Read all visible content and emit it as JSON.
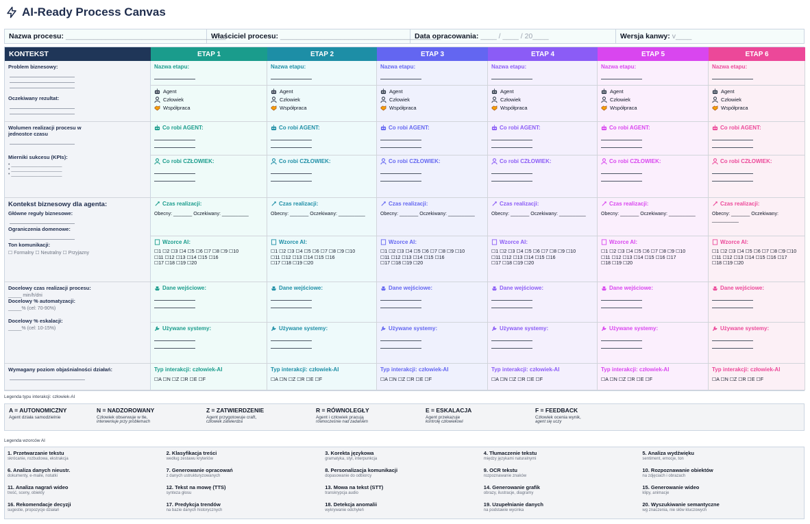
{
  "title": "AI-Ready Process Canvas",
  "meta": {
    "name_label": "Nazwa procesu:",
    "name_val": "________________________________________",
    "owner_label": "Właściciel procesu:",
    "owner_val": "________________________________________",
    "date_label": "Data opracowania:",
    "date_val": "____ / ____ / 20____",
    "ver_label": "Wersja kanwy:",
    "ver_val": "v____"
  },
  "context": {
    "header": "KONTEKST",
    "problem": "Problem biznesowy:",
    "result": "Oczekiwany rezultat:",
    "volume": "Wolumen realizacji procesu w jednostce czasu",
    "kpis": "Mierniki sukcesu (KPIs):",
    "business_ctx": "Kontekst biznesowy dla agenta:",
    "rules": "Główne reguły biznesowe:",
    "domain": "Ograniczenia domenowe:",
    "tone": "Ton komunikacji:",
    "tone_opts": "☐ Formalny ☐ Neutralny ☐ Przyjazny",
    "target_time": "Docelowy czas realizacji procesu:",
    "target_time_unit": "_____ min/h/dni",
    "auto": "Docelowy % automatyzacji:",
    "auto_goal": "_____% (cel: 70-90%)",
    "esc": "Docelowy % eskalacji:",
    "esc_goal": "_____% (cel: 10-15%)",
    "explain": "Wymagany poziom objaśnialności działań:",
    "kpi_bullets": [
      "• ___________________",
      "• ___________________",
      "• ___________________"
    ]
  },
  "stage_labels": {
    "name": "Nazwa etapu:",
    "agent": "Agent",
    "human": "Człowiek",
    "collab": "Współpraca",
    "does_agent": "Co robi AGENT:",
    "does_human": "Co robi CZŁOWIEK:",
    "time": "Czas realizacji:",
    "current": "Obecny: _______",
    "expected": "Oczekiwany: __________",
    "patterns": "Wzorce AI:",
    "inputs": "Dane wejściowe:",
    "systems": "Używane systemy:",
    "interaction": "Typ interakcji: człowiek-AI",
    "interaction_opts": "☐A ☐N ☐Z ☐R ☐E ☐F"
  },
  "stages": [
    {
      "header": "ETAP 1",
      "color": "#1a9c8c",
      "checks": "☐1 ☐2 ☐3 ☐4 ☐5 ☐6 ☐7 ☐8 ☐9 ☐10\n☐11 ☐12 ☐13 ☐14 ☐15 ☐16\n☐17 ☐18 ☐19 ☐20"
    },
    {
      "header": "ETAP 2",
      "color": "#1d8ea6",
      "checks": "☐1 ☐2 ☐3 ☐4 ☐5 ☐6 ☐7 ☐8 ☐9 ☐10\n☐11 ☐12 ☐13 ☐14 ☐15 ☐16\n☐17 ☐18 ☐19 ☐20"
    },
    {
      "header": "ETAP 3",
      "color": "#6366f1",
      "checks": "☐1 ☐2 ☐3 ☐4 ☐5 ☐6 ☐7 ☐8 ☐9 ☐10\n☐11 ☐12 ☐13 ☐14 ☐15 ☐16\n☐17 ☐18 ☐19 ☐20"
    },
    {
      "header": "ETAP 4",
      "color": "#8b5cf6",
      "checks": "☐1 ☐2 ☐3 ☐4 ☐5 ☐6 ☐7 ☐8 ☐9 ☐10\n☐11 ☐12 ☐13 ☐14 ☐15 ☐16\n☐17 ☐18 ☐19 ☐20"
    },
    {
      "header": "ETAP 5",
      "color": "#d946ef",
      "checks": "☐1 ☐2 ☐3 ☐4 ☐5 ☐6 ☐7 ☐8 ☐9 ☐10\n☐11 ☐12 ☐13 ☐14 ☐15 ☐16 ☐17\n☐18 ☐19 ☐20"
    },
    {
      "header": "ETAP 6",
      "color": "#ec4899",
      "checks": "☐1 ☐2 ☐3 ☐4 ☐5 ☐6 ☐7 ☐8 ☐9 ☐10\n☐11 ☐12 ☐13 ☐14 ☐15 ☐16 ☐17\n☐18 ☐19 ☐20"
    }
  ],
  "legend1": {
    "title": "Legenda typu interakcji: człowiek-AI",
    "items": [
      {
        "h": "A = AUTONOMICZNY",
        "d": "Agent działa samodzielnie",
        "i": ""
      },
      {
        "h": "N = NADZOROWANY",
        "d": "Człowiek obserwuje w tle,",
        "i": "interweniuje przy problemach"
      },
      {
        "h": "Z = ZATWIERDZENIE",
        "d": "Agent przygotowuje craft,",
        "i": "człowiek zatwierdza"
      },
      {
        "h": "R = RÓWNOLEGŁY",
        "d": "Agent i człowiek pracują",
        "i": "równocześnie nad zadaniem"
      },
      {
        "h": "E = ESKALACJA",
        "d": "Agent przekazuje",
        "i": "kontrolę człowiekowi"
      },
      {
        "h": "F = FEEDBACK",
        "d": "Człowiek ocenia wynik,",
        "i": "agent się uczy"
      }
    ]
  },
  "legend2": {
    "title": "Legenda wzorców AI",
    "items": [
      {
        "h": "1. Przetwarzanie tekstu",
        "d": "skrócanie, rozbudowa, ekstrakcja"
      },
      {
        "h": "2. Klasyfikacja treści",
        "d": "według zestawu kryteriów"
      },
      {
        "h": "3. Korekta językowa",
        "d": "gramatyka, styl, interpunkcja"
      },
      {
        "h": "4. Tłumaczenie tekstu",
        "d": "między językami naturalnymi"
      },
      {
        "h": "5. Analiza wydźwięku",
        "d": "sentiment, emocje, ton"
      },
      {
        "h": "6. Analiza danych nieustr.",
        "d": "dokumenty, e-maile, notatki"
      },
      {
        "h": "7. Generowanie opracowań",
        "d": "z danych ustrukturyzowanych"
      },
      {
        "h": "8. Personalizacja komunikacji",
        "d": "dopasowanie do odbiorcy"
      },
      {
        "h": "9. OCR tekstu",
        "d": "rozpoznawanie znaków"
      },
      {
        "h": "10. Rozpoznawanie obiektów",
        "d": "na zdjęciach i obrazach"
      },
      {
        "h": "11. Analiza nagrań wideo",
        "d": "treść, sceny, obiekty"
      },
      {
        "h": "12. Tekst na mowę (TTS)",
        "d": "synteza głosu"
      },
      {
        "h": "13. Mowa na tekst (STT)",
        "d": "transkrypcja audio"
      },
      {
        "h": "14. Generowanie grafik",
        "d": "obrazy, ilustracje, diagramy"
      },
      {
        "h": "15. Generowanie wideo",
        "d": "klipy, animacje"
      },
      {
        "h": "16. Rekomendacje decyzji",
        "d": "sugestie, propozycje działań"
      },
      {
        "h": "17. Predykcja trendów",
        "d": "na bazie danych historycznych"
      },
      {
        "h": "18. Detekcja anomalii",
        "d": "wykrywanie odchyleń"
      },
      {
        "h": "19. Uzupełnianie danych",
        "d": "na podstawie wycinka"
      },
      {
        "h": "20. Wyszukiwanie semantyczne",
        "d": "wg znaczenia, nie słów kluczowych"
      }
    ]
  }
}
